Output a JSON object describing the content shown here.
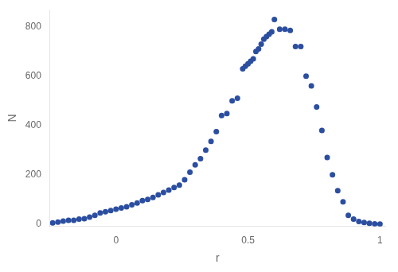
{
  "chart_data": {
    "type": "scatter",
    "xlabel": "r",
    "ylabel": "N",
    "color": "#2b4ea0",
    "marker": "circle",
    "grid": false,
    "xlim": [
      -0.25,
      1.02
    ],
    "ylim": [
      -10,
      870
    ],
    "xticks": [
      0,
      0.5,
      1
    ],
    "yticks": [
      0,
      200,
      400,
      600,
      800
    ],
    "x": [
      -0.24,
      -0.22,
      -0.2,
      -0.18,
      -0.16,
      -0.14,
      -0.12,
      -0.1,
      -0.08,
      -0.06,
      -0.04,
      -0.02,
      0.0,
      0.02,
      0.04,
      0.06,
      0.08,
      0.1,
      0.12,
      0.14,
      0.16,
      0.18,
      0.2,
      0.22,
      0.24,
      0.26,
      0.28,
      0.3,
      0.32,
      0.34,
      0.36,
      0.38,
      0.4,
      0.42,
      0.44,
      0.46,
      0.48,
      0.49,
      0.5,
      0.51,
      0.52,
      0.53,
      0.54,
      0.55,
      0.56,
      0.57,
      0.58,
      0.59,
      0.6,
      0.62,
      0.64,
      0.66,
      0.68,
      0.7,
      0.72,
      0.74,
      0.76,
      0.78,
      0.8,
      0.82,
      0.84,
      0.86,
      0.88,
      0.9,
      0.92,
      0.94,
      0.96,
      0.98,
      1.0
    ],
    "values": [
      5,
      8,
      12,
      15,
      15,
      20,
      22,
      28,
      35,
      45,
      50,
      55,
      60,
      65,
      70,
      78,
      85,
      95,
      100,
      108,
      118,
      128,
      138,
      148,
      158,
      180,
      210,
      240,
      265,
      300,
      335,
      375,
      440,
      448,
      500,
      510,
      630,
      640,
      650,
      660,
      670,
      700,
      710,
      730,
      750,
      760,
      770,
      780,
      830,
      790,
      790,
      785,
      720,
      720,
      600,
      560,
      475,
      380,
      270,
      200,
      135,
      90,
      35,
      20,
      10,
      6,
      3,
      1,
      0
    ]
  }
}
